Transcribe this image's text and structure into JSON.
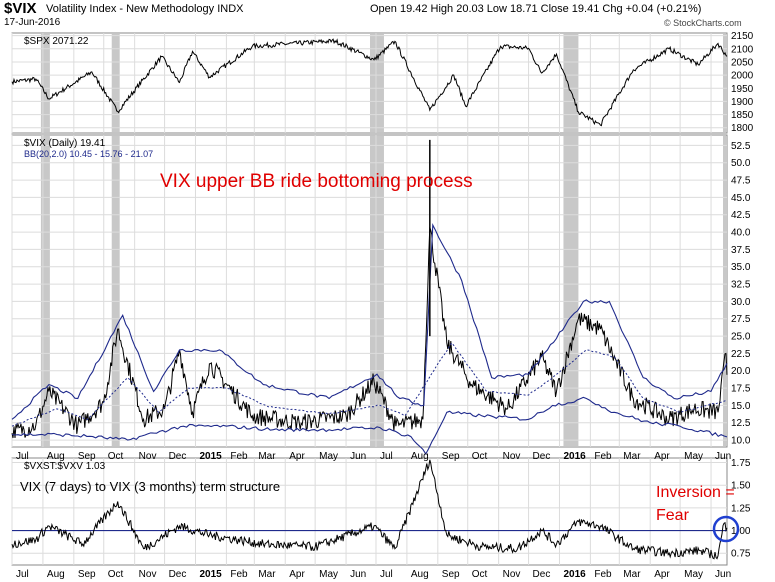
{
  "header": {
    "symbol": "$VIX",
    "name": "Volatility Index - New Methodology INDX",
    "date": "17-Jun-2016",
    "quote": "Open 19.42  High 20.03  Low 18.71  Close 19.41  Chg +0.04 (+0.21%)",
    "brand": "© StockCharts.com"
  },
  "colors": {
    "price": "#000000",
    "bands": "#1f2a8c",
    "shade": "#c8c8c8",
    "annotation": "#e00000",
    "grid": "#dcdcdc",
    "circle": "#1f3fd0"
  },
  "chart_data": [
    {
      "type": "line",
      "legend": "$SPX 2071.22",
      "y_ticks": [
        1800,
        1850,
        1900,
        1950,
        2000,
        2050,
        2100,
        2150
      ],
      "ylim": [
        1780,
        2160
      ],
      "series": [
        {
          "name": "$SPX",
          "x": [
            "2014-07-01",
            "2014-07-25",
            "2014-08-07",
            "2014-09-19",
            "2014-10-15",
            "2014-11-28",
            "2014-12-16",
            "2014-12-29",
            "2015-01-15",
            "2015-02-27",
            "2015-05-21",
            "2015-06-29",
            "2015-07-20",
            "2015-08-24",
            "2015-09-17",
            "2015-09-29",
            "2015-11-03",
            "2015-12-01",
            "2015-12-14",
            "2015-12-29",
            "2016-01-20",
            "2016-02-11",
            "2016-03-15",
            "2016-04-20",
            "2016-05-19",
            "2016-06-08",
            "2016-06-17"
          ],
          "y": [
            1975,
            1985,
            1910,
            2012,
            1862,
            2070,
            1972,
            2090,
            1992,
            2110,
            2130,
            2058,
            2128,
            1867,
            2000,
            1882,
            2110,
            2102,
            2008,
            2080,
            1860,
            1810,
            2020,
            2100,
            2040,
            2120,
            2071
          ]
        }
      ],
      "shaded_periods": [
        [
          "2014-07-30",
          "2014-08-08"
        ],
        [
          "2014-10-09",
          "2014-10-17"
        ],
        [
          "2015-06-25",
          "2015-07-09"
        ],
        [
          "2016-01-05",
          "2016-01-20"
        ],
        [
          "2016-06-13",
          "2016-06-17"
        ]
      ]
    },
    {
      "type": "line",
      "legend": "$VIX (Daily) 19.41",
      "legend2": "BB(20,2.0) 10.45 - 15.76 - 21.07",
      "annotation": "VIX upper BB ride bottoming process",
      "y_ticks": [
        10.0,
        12.5,
        15.0,
        17.5,
        20.0,
        22.5,
        25.0,
        27.5,
        30.0,
        32.5,
        35.0,
        37.5,
        40.0,
        42.5,
        45.0,
        47.5,
        50.0,
        52.5
      ],
      "ylim": [
        9,
        54
      ],
      "series": [
        {
          "name": "$VIX",
          "x": [
            "2014-07-01",
            "2014-07-25",
            "2014-08-07",
            "2014-09-05",
            "2014-10-01",
            "2014-10-15",
            "2014-11-10",
            "2014-12-01",
            "2014-12-16",
            "2014-12-29",
            "2015-01-15",
            "2015-02-27",
            "2015-04-15",
            "2015-06-01",
            "2015-06-29",
            "2015-07-21",
            "2015-08-17",
            "2015-08-24",
            "2015-09-10",
            "2015-10-05",
            "2015-11-10",
            "2015-12-14",
            "2015-12-29",
            "2016-01-20",
            "2016-02-11",
            "2016-03-15",
            "2016-04-20",
            "2016-05-15",
            "2016-06-08",
            "2016-06-16",
            "2016-06-17"
          ],
          "y": [
            11.0,
            12.2,
            17.0,
            12.0,
            15.5,
            26.0,
            13.0,
            14.5,
            23.0,
            14.0,
            21.0,
            13.5,
            12.5,
            13.5,
            18.5,
            12.0,
            13.0,
            40.7,
            24.0,
            18.0,
            14.5,
            22.0,
            17.0,
            27.5,
            26.0,
            16.0,
            13.0,
            14.5,
            14.0,
            22.5,
            19.41
          ]
        },
        {
          "name": "BB upper",
          "x": [
            "2014-07-01",
            "2014-08-07",
            "2014-09-05",
            "2014-10-20",
            "2014-11-20",
            "2014-12-16",
            "2015-01-25",
            "2015-03-10",
            "2015-05-15",
            "2015-07-02",
            "2015-07-25",
            "2015-08-18",
            "2015-08-27",
            "2015-09-25",
            "2015-10-25",
            "2015-12-01",
            "2015-12-20",
            "2016-01-25",
            "2016-02-20",
            "2016-03-25",
            "2016-04-25",
            "2016-06-01",
            "2016-06-17"
          ],
          "y": [
            13.0,
            18.0,
            16.0,
            28.0,
            17.0,
            23.0,
            23.0,
            18.0,
            16.0,
            19.5,
            16.0,
            15.0,
            41.0,
            33.0,
            19.0,
            19.5,
            23.0,
            30.0,
            30.0,
            19.0,
            16.0,
            17.0,
            21.07
          ]
        },
        {
          "name": "BB middle",
          "x": [
            "2014-07-01",
            "2014-08-15",
            "2014-09-15",
            "2014-10-25",
            "2014-11-25",
            "2014-12-25",
            "2015-02-01",
            "2015-03-15",
            "2015-05-15",
            "2015-07-05",
            "2015-07-30",
            "2015-08-28",
            "2015-09-15",
            "2015-10-20",
            "2015-12-01",
            "2015-12-25",
            "2016-01-28",
            "2016-02-25",
            "2016-03-25",
            "2016-05-01",
            "2016-06-17"
          ],
          "y": [
            12.0,
            14.5,
            13.0,
            19.0,
            14.0,
            17.5,
            17.5,
            14.8,
            13.8,
            15.0,
            13.5,
            20.0,
            24.0,
            17.0,
            16.5,
            19.0,
            23.0,
            22.0,
            16.0,
            14.0,
            15.76
          ]
        },
        {
          "name": "BB lower",
          "x": [
            "2014-07-01",
            "2014-08-15",
            "2014-09-20",
            "2014-10-25",
            "2014-11-20",
            "2014-12-20",
            "2015-02-01",
            "2015-03-20",
            "2015-05-15",
            "2015-07-05",
            "2015-08-05",
            "2015-08-20",
            "2015-09-10",
            "2015-10-15",
            "2015-12-01",
            "2015-12-25",
            "2016-01-28",
            "2016-02-25",
            "2016-04-01",
            "2016-05-01",
            "2016-06-17"
          ],
          "y": [
            10.8,
            10.8,
            10.5,
            10.0,
            11.0,
            12.0,
            12.0,
            11.5,
            11.5,
            11.8,
            10.5,
            8.0,
            14.0,
            13.5,
            13.0,
            15.0,
            16.0,
            14.0,
            12.5,
            12.0,
            10.45
          ]
        }
      ],
      "shaded_periods": [
        [
          "2014-07-30",
          "2014-08-08"
        ],
        [
          "2014-10-09",
          "2014-10-17"
        ],
        [
          "2015-06-25",
          "2015-07-09"
        ],
        [
          "2016-01-05",
          "2016-01-20"
        ],
        [
          "2016-06-13",
          "2016-06-17"
        ]
      ]
    },
    {
      "type": "line",
      "legend": "$VXST:$VXV 1.03",
      "annotation": "VIX (7 days) to VIX (3 months) term structure",
      "annotation2_line1": "Inversion =",
      "annotation2_line2": "Fear",
      "reference_line": 1.0,
      "y_ticks": [
        0.75,
        1.0,
        1.25,
        1.5,
        1.75
      ],
      "ylim": [
        0.62,
        1.8
      ],
      "series": [
        {
          "name": "$VXST:$VXV",
          "x": [
            "2014-07-01",
            "2014-07-25",
            "2014-08-07",
            "2014-09-10",
            "2014-10-15",
            "2014-11-10",
            "2014-12-16",
            "2015-01-15",
            "2015-03-10",
            "2015-05-01",
            "2015-06-29",
            "2015-07-20",
            "2015-08-24",
            "2015-09-10",
            "2015-10-15",
            "2015-11-20",
            "2015-12-14",
            "2015-12-29",
            "2016-01-20",
            "2016-02-11",
            "2016-03-15",
            "2016-04-20",
            "2016-05-20",
            "2016-06-08",
            "2016-06-14",
            "2016-06-17"
          ],
          "y": [
            0.85,
            0.9,
            1.05,
            0.85,
            1.32,
            0.8,
            1.05,
            0.95,
            0.85,
            0.82,
            1.05,
            0.8,
            1.78,
            0.95,
            0.82,
            0.8,
            1.0,
            0.85,
            1.1,
            1.05,
            0.8,
            0.75,
            0.78,
            0.72,
            1.08,
            1.03
          ]
        }
      ]
    }
  ],
  "x_axis": {
    "labels": [
      {
        "text": "Jul",
        "date": "2014-07-01"
      },
      {
        "text": "Aug",
        "date": "2014-08-01"
      },
      {
        "text": "Sep",
        "date": "2014-09-01"
      },
      {
        "text": "Oct",
        "date": "2014-10-01"
      },
      {
        "text": "Nov",
        "date": "2014-11-01"
      },
      {
        "text": "Dec",
        "date": "2014-12-01"
      },
      {
        "text": "2015",
        "date": "2015-01-01",
        "bold": true
      },
      {
        "text": "Feb",
        "date": "2015-02-01"
      },
      {
        "text": "Mar",
        "date": "2015-03-01"
      },
      {
        "text": "Apr",
        "date": "2015-04-01"
      },
      {
        "text": "May",
        "date": "2015-05-01"
      },
      {
        "text": "Jun",
        "date": "2015-06-01"
      },
      {
        "text": "Jul",
        "date": "2015-07-01"
      },
      {
        "text": "Aug",
        "date": "2015-08-01"
      },
      {
        "text": "Sep",
        "date": "2015-09-01"
      },
      {
        "text": "Oct",
        "date": "2015-10-01"
      },
      {
        "text": "Nov",
        "date": "2015-11-01"
      },
      {
        "text": "Dec",
        "date": "2015-12-01"
      },
      {
        "text": "2016",
        "date": "2016-01-01",
        "bold": true
      },
      {
        "text": "Feb",
        "date": "2016-02-01"
      },
      {
        "text": "Mar",
        "date": "2016-03-01"
      },
      {
        "text": "Apr",
        "date": "2016-04-01"
      },
      {
        "text": "May",
        "date": "2016-05-01"
      },
      {
        "text": "Jun",
        "date": "2016-06-01"
      }
    ]
  }
}
